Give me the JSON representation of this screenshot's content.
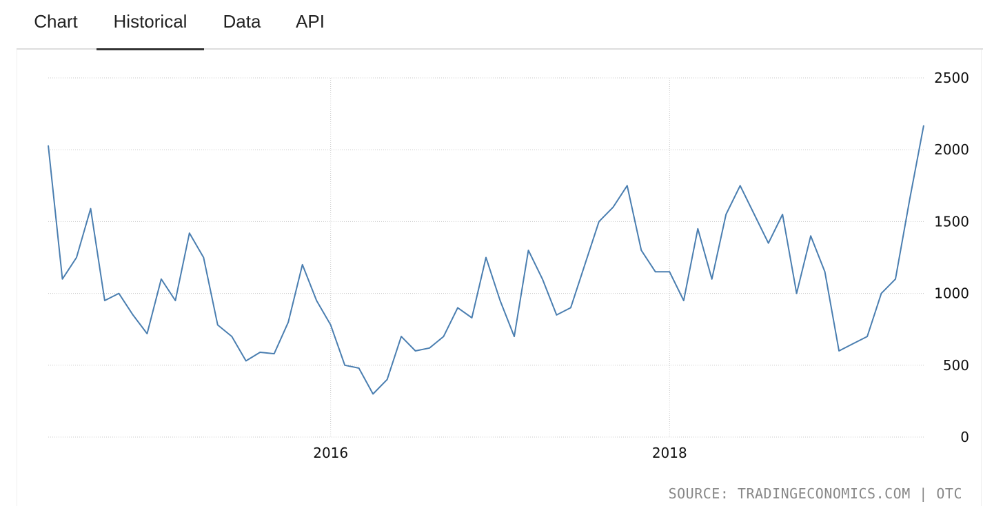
{
  "tabs": [
    {
      "label": "Chart",
      "active": false
    },
    {
      "label": "Historical",
      "active": true
    },
    {
      "label": "Data",
      "active": false
    },
    {
      "label": "API",
      "active": false
    }
  ],
  "source_text": "SOURCE: TRADINGECONOMICS.COM | OTC",
  "colors": {
    "line": "#4a7eb0",
    "grid": "#c8c8c8",
    "tab_active": "#333333"
  },
  "chart_data": {
    "type": "line",
    "title": "",
    "xlabel": "",
    "ylabel": "",
    "x_ticks": [
      "2016",
      "2018"
    ],
    "y_ticks": [
      0,
      500,
      1000,
      1500,
      2000,
      2500
    ],
    "ylim": [
      0,
      2500
    ],
    "xlim": [
      "2014-05",
      "2019-07"
    ],
    "grid": true,
    "y_axis_side": "right",
    "series": [
      {
        "name": "",
        "x": [
          "2014-05",
          "2014-06",
          "2014-07",
          "2014-08",
          "2014-09",
          "2014-10",
          "2014-11",
          "2014-12",
          "2015-01",
          "2015-02",
          "2015-03",
          "2015-04",
          "2015-05",
          "2015-06",
          "2015-07",
          "2015-08",
          "2015-09",
          "2015-10",
          "2015-11",
          "2015-12",
          "2016-01",
          "2016-02",
          "2016-03",
          "2016-04",
          "2016-05",
          "2016-06",
          "2016-07",
          "2016-08",
          "2016-09",
          "2016-10",
          "2016-11",
          "2016-12",
          "2017-01",
          "2017-02",
          "2017-03",
          "2017-04",
          "2017-05",
          "2017-06",
          "2017-07",
          "2017-08",
          "2017-09",
          "2017-10",
          "2017-11",
          "2017-12",
          "2018-01",
          "2018-02",
          "2018-03",
          "2018-04",
          "2018-05",
          "2018-06",
          "2018-07",
          "2018-08",
          "2018-09",
          "2018-10",
          "2018-11",
          "2018-12",
          "2019-01",
          "2019-02",
          "2019-03",
          "2019-04",
          "2019-05",
          "2019-06",
          "2019-07"
        ],
        "values": [
          2030,
          1100,
          1250,
          1590,
          950,
          1000,
          850,
          720,
          1100,
          950,
          1420,
          1250,
          780,
          700,
          530,
          590,
          580,
          800,
          1200,
          950,
          780,
          500,
          480,
          300,
          400,
          700,
          600,
          620,
          700,
          900,
          830,
          1250,
          950,
          700,
          1300,
          1100,
          850,
          900,
          1200,
          1500,
          1600,
          1750,
          1300,
          1150,
          1150,
          950,
          1450,
          1100,
          1550,
          1750,
          1550,
          1350,
          1550,
          1000,
          1400,
          1150,
          600,
          650,
          700,
          1000,
          1100,
          1650,
          2170
        ]
      }
    ]
  }
}
